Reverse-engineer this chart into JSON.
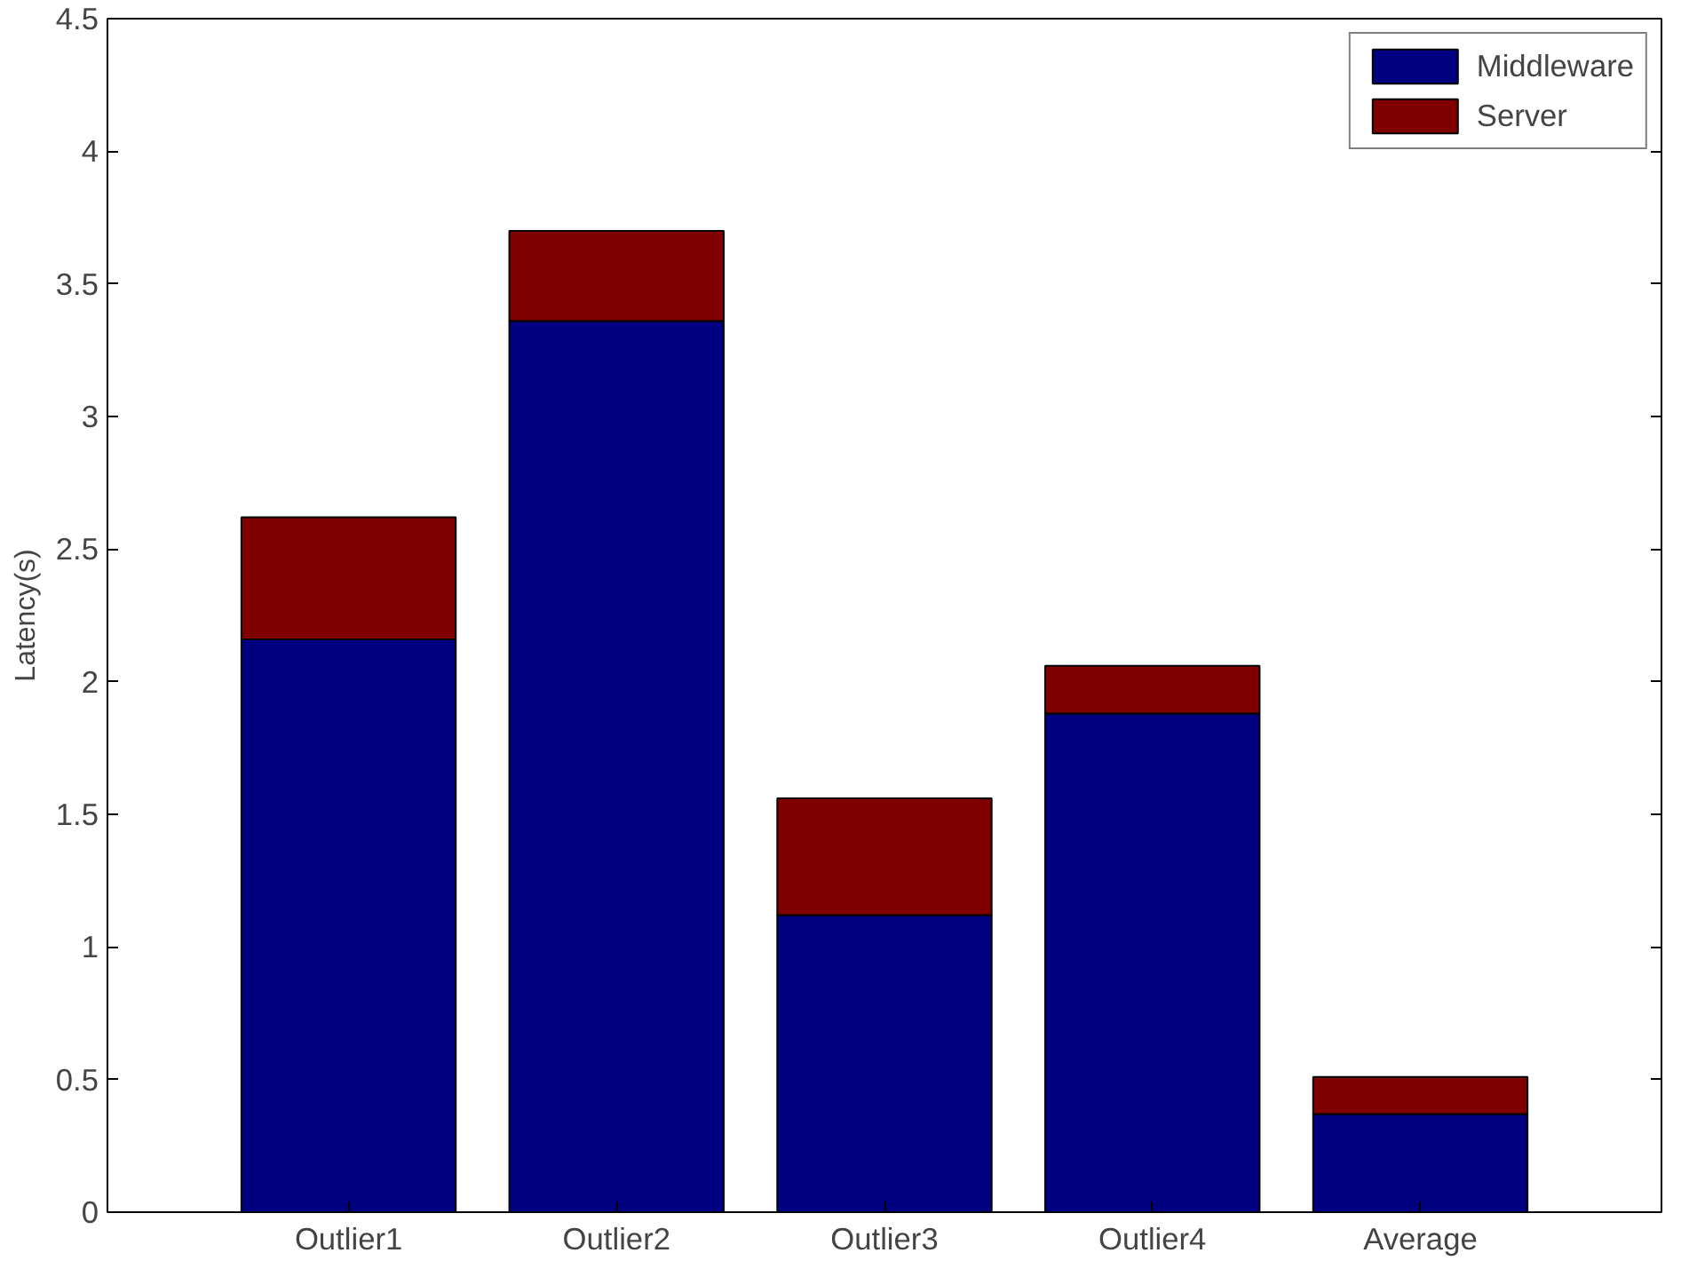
{
  "chart_data": {
    "type": "bar",
    "stacked": true,
    "ylabel": "Latency(s)",
    "categories": [
      "Outlier1",
      "Outlier2",
      "Outlier3",
      "Outlier4",
      "Average"
    ],
    "series": [
      {
        "name": "Middleware",
        "color": "#000080",
        "values": [
          2.16,
          3.36,
          1.12,
          1.88,
          0.37
        ]
      },
      {
        "name": "Server",
        "color": "#800000",
        "values": [
          0.46,
          0.34,
          0.44,
          0.18,
          0.14
        ]
      }
    ],
    "ylim": [
      0,
      4.5
    ],
    "yticks": [
      0,
      0.5,
      1,
      1.5,
      2,
      2.5,
      3,
      3.5,
      4,
      4.5
    ],
    "grid": false,
    "legend": "top right"
  }
}
